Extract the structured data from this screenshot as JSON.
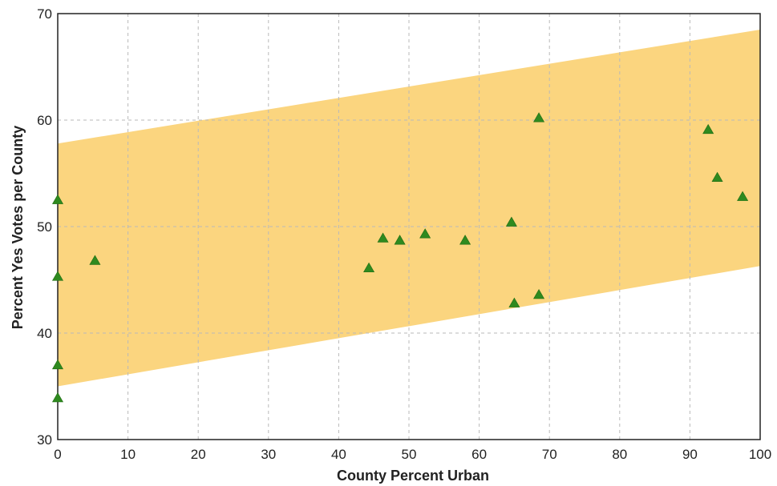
{
  "chart_data": {
    "type": "scatter",
    "title": "",
    "xlabel": "County Percent Urban",
    "ylabel": "Percent Yes Votes per County",
    "xlim": [
      0,
      100
    ],
    "ylim": [
      30,
      70
    ],
    "x_ticks": [
      0,
      10,
      20,
      30,
      40,
      50,
      60,
      70,
      80,
      90,
      100
    ],
    "y_ticks": [
      30,
      40,
      50,
      60,
      70
    ],
    "grid": true,
    "band": {
      "x": [
        0,
        100
      ],
      "upper": [
        57.8,
        68.5
      ],
      "lower": [
        35.0,
        46.3
      ],
      "color": "#fbd57f"
    },
    "series": [
      {
        "marker": "triangle",
        "color": "#2f8a1f",
        "points": [
          {
            "x": 0,
            "y": 52.5
          },
          {
            "x": 0,
            "y": 45.3
          },
          {
            "x": 0,
            "y": 37.0
          },
          {
            "x": 0,
            "y": 33.9
          },
          {
            "x": 5.3,
            "y": 46.8
          },
          {
            "x": 44.3,
            "y": 46.1
          },
          {
            "x": 46.3,
            "y": 48.9
          },
          {
            "x": 48.7,
            "y": 48.7
          },
          {
            "x": 52.3,
            "y": 49.3
          },
          {
            "x": 58.0,
            "y": 48.7
          },
          {
            "x": 64.6,
            "y": 50.4
          },
          {
            "x": 65.0,
            "y": 42.8
          },
          {
            "x": 68.5,
            "y": 43.6
          },
          {
            "x": 68.5,
            "y": 60.2
          },
          {
            "x": 92.6,
            "y": 59.1
          },
          {
            "x": 93.9,
            "y": 54.6
          },
          {
            "x": 97.5,
            "y": 52.8
          }
        ]
      }
    ],
    "axis_color": "#222222",
    "grid_color": "#b9b9b9"
  }
}
